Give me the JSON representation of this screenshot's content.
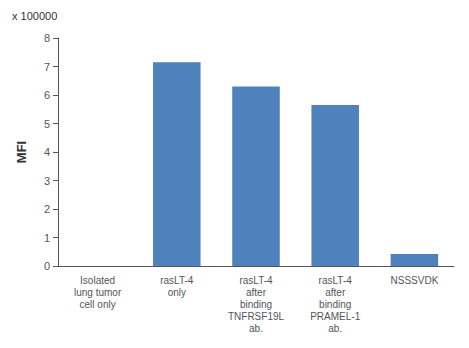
{
  "chart_data": {
    "type": "bar",
    "categories": [
      "Isolated\nlung tumor\ncell only",
      "rasLT-4\nonly",
      "rasLT-4\nafter\nbinding\nTNFRSF19L\nab.",
      "rasLT-4\nafter\nbinding\nPRAMEL-1\nab.",
      "NSSSVDK"
    ],
    "values": [
      0.0,
      7.15,
      6.3,
      5.65,
      0.42
    ],
    "color": "#4F81BD",
    "ylabel": "MFI",
    "annotations": [
      "x 100000"
    ],
    "ylim": [
      0,
      8
    ],
    "yticks": [
      0,
      1,
      2,
      3,
      4,
      5,
      6,
      7,
      8
    ],
    "grid": false
  }
}
